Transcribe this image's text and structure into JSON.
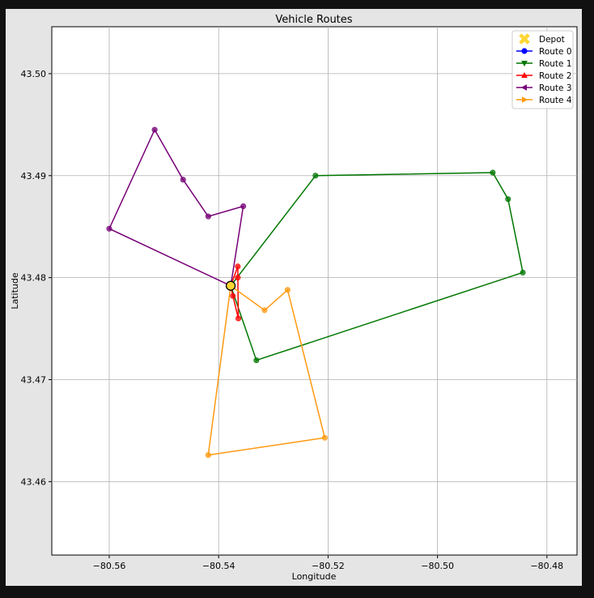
{
  "chart_data": {
    "type": "line",
    "title": "Vehicle Routes",
    "xlabel": "Longitude",
    "ylabel": "Latitude",
    "xlim": [
      -80.5705,
      -80.4745
    ],
    "ylim": [
      43.4528,
      43.5046
    ],
    "xticks": [
      -80.56,
      -80.54,
      -80.52,
      -80.5,
      -80.48
    ],
    "xtick_labels": [
      "−80.56",
      "−80.54",
      "−80.52",
      "−80.50",
      "−80.48"
    ],
    "yticks": [
      43.46,
      43.47,
      43.48,
      43.49,
      43.5
    ],
    "ytick_labels": [
      "43.46",
      "43.47",
      "43.48",
      "43.49",
      "43.50"
    ],
    "grid": true,
    "legend_position": "top-right",
    "depot": {
      "name": "Depot",
      "lon": -80.5378,
      "lat": 43.4792,
      "color": "#ffd633"
    },
    "series": [
      {
        "name": "Route 0",
        "color": "#0000ff",
        "marker": "circle",
        "points": []
      },
      {
        "name": "Route 1",
        "color": "#007700",
        "marker": "triangle-down",
        "points": [
          [
            -80.5378,
            43.4792
          ],
          [
            -80.5223,
            43.49
          ],
          [
            -80.4899,
            43.4903
          ],
          [
            -80.4871,
            43.4877
          ],
          [
            -80.4844,
            43.4805
          ],
          [
            -80.5331,
            43.4719
          ],
          [
            -80.5378,
            43.4792
          ]
        ]
      },
      {
        "name": "Route 2",
        "color": "#ff0000",
        "marker": "triangle-up",
        "points": [
          [
            -80.5378,
            43.4792
          ],
          [
            -80.5365,
            43.4811
          ],
          [
            -80.5365,
            43.48
          ],
          [
            -80.5364,
            43.476
          ],
          [
            -80.5374,
            43.4782
          ],
          [
            -80.5378,
            43.4792
          ]
        ]
      },
      {
        "name": "Route 3",
        "color": "#770077",
        "marker": "triangle-left",
        "points": [
          [
            -80.5378,
            43.4792
          ],
          [
            -80.5355,
            43.487
          ],
          [
            -80.5419,
            43.486
          ],
          [
            -80.5465,
            43.4896
          ],
          [
            -80.5517,
            43.4945
          ],
          [
            -80.56,
            43.4848
          ],
          [
            -80.5378,
            43.4792
          ]
        ]
      },
      {
        "name": "Route 4",
        "color": "#ff9911",
        "marker": "triangle-right",
        "points": [
          [
            -80.5378,
            43.4792
          ],
          [
            -80.5316,
            43.4768
          ],
          [
            -80.5274,
            43.4788
          ],
          [
            -80.5206,
            43.4643
          ],
          [
            -80.5419,
            43.4626
          ],
          [
            -80.5378,
            43.4792
          ]
        ]
      }
    ]
  }
}
